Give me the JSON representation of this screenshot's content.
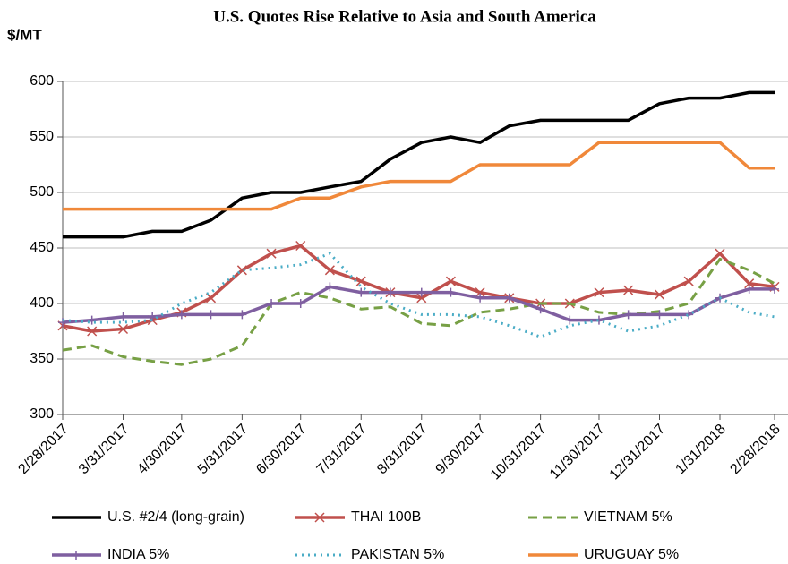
{
  "chart_data": {
    "type": "line",
    "title": "U.S. Quotes Rise Relative to Asia and South America",
    "y_label": "$/MT",
    "x": [
      "2/28/2017",
      "3/15/2017",
      "3/31/2017",
      "4/15/2017",
      "4/30/2017",
      "5/15/2017",
      "5/31/2017",
      "6/15/2017",
      "6/30/2017",
      "7/15/2017",
      "7/31/2017",
      "8/15/2017",
      "8/31/2017",
      "9/15/2017",
      "9/30/2017",
      "10/15/2017",
      "10/31/2017",
      "11/15/2017",
      "11/30/2017",
      "12/15/2017",
      "12/31/2017",
      "1/15/2018",
      "1/31/2018",
      "2/15/2018",
      "2/28/2018"
    ],
    "xlim": [
      "2/28/2017",
      "2/28/2018"
    ],
    "xticks": [
      "2/28/2017",
      "3/31/2017",
      "4/30/2017",
      "5/31/2017",
      "6/30/2017",
      "7/31/2017",
      "8/31/2017",
      "9/30/2017",
      "10/31/2017",
      "11/30/2017",
      "12/31/2017",
      "1/31/2018",
      "2/28/2018"
    ],
    "ylim": [
      300,
      600
    ],
    "yticks": [
      300,
      350,
      400,
      450,
      500,
      550,
      600
    ],
    "grid": true,
    "legend": "bottom",
    "series": [
      {
        "name": "U.S. #2/4 (long-grain)",
        "color": "#000000",
        "dash": "solid",
        "values": [
          460,
          460,
          460,
          465,
          465,
          475,
          495,
          500,
          500,
          505,
          510,
          530,
          545,
          550,
          545,
          560,
          565,
          565,
          565,
          565,
          580,
          585,
          585,
          590,
          590
        ]
      },
      {
        "name": "THAI 100B",
        "color": "#c0504d",
        "dash": "solid",
        "marker": "x",
        "values": [
          380,
          375,
          377,
          385,
          392,
          405,
          430,
          445,
          452,
          430,
          420,
          410,
          405,
          420,
          410,
          405,
          400,
          400,
          410,
          412,
          408,
          420,
          445,
          418,
          415
        ]
      },
      {
        "name": "VIETNAM 5%",
        "color": "#77a045",
        "dash": "dashed",
        "values": [
          358,
          362,
          352,
          348,
          345,
          350,
          362,
          400,
          410,
          405,
          395,
          397,
          382,
          380,
          392,
          395,
          400,
          400,
          392,
          390,
          393,
          400,
          440,
          430,
          418
        ]
      },
      {
        "name": "INDIA 5%",
        "color": "#7f5fa0",
        "dash": "solid",
        "marker": "plus",
        "values": [
          383,
          385,
          388,
          388,
          390,
          390,
          390,
          400,
          400,
          415,
          410,
          410,
          410,
          410,
          405,
          405,
          395,
          385,
          385,
          390,
          390,
          390,
          405,
          413,
          413
        ]
      },
      {
        "name": "PAKISTAN 5%",
        "color": "#4aacc6",
        "dash": "dotted",
        "values": [
          385,
          383,
          383,
          385,
          400,
          410,
          430,
          432,
          435,
          445,
          415,
          400,
          390,
          390,
          388,
          380,
          370,
          380,
          385,
          375,
          380,
          390,
          405,
          392,
          388
        ]
      },
      {
        "name": "URUGUAY 5%",
        "color": "#f0883a",
        "dash": "solid",
        "values": [
          485,
          485,
          485,
          485,
          485,
          485,
          485,
          485,
          495,
          495,
          505,
          510,
          510,
          510,
          525,
          525,
          525,
          525,
          545,
          545,
          545,
          545,
          545,
          522,
          522
        ]
      }
    ]
  }
}
